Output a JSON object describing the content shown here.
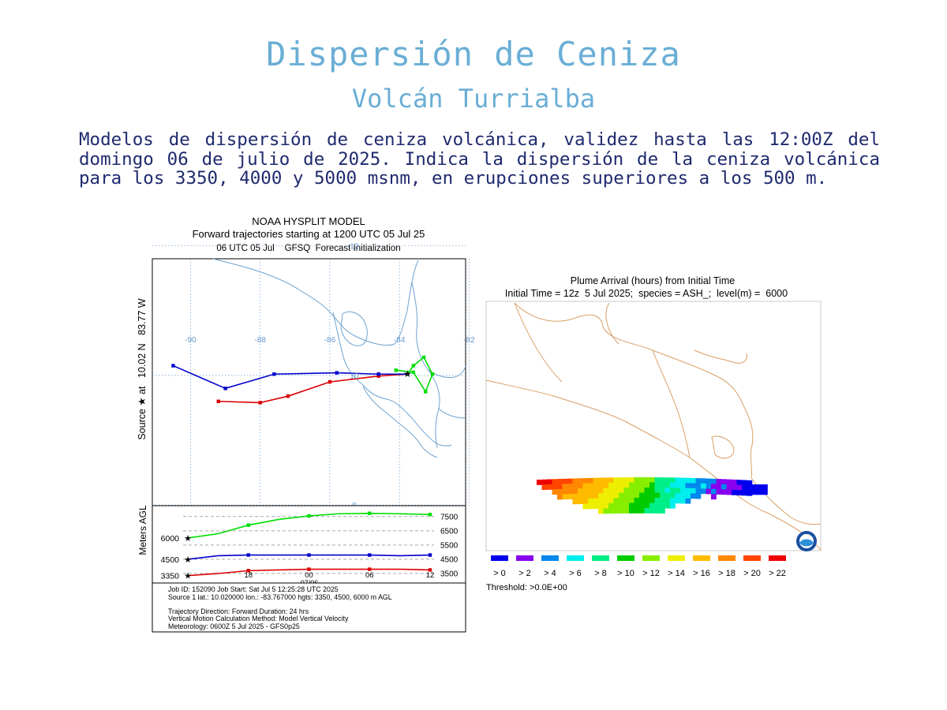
{
  "header": {
    "title": "Dispersión de Ceniza",
    "subtitle": "Volcán Turrialba",
    "description": "Modelos de dispersión de ceniza volcánica, validez hasta las 12:00Z del domingo 06 de julio de 2025. Indica la dispersión de la ceniza volcánica para los 3350, 4000 y 5000 msnm, en erupciones superiores a los 500 m."
  },
  "colors": {
    "title": "#6aaed6",
    "text": "#1f2a6e",
    "grid": "#6699cc",
    "coast_left": "#6fa3d0",
    "coast_right": "#d9a066"
  },
  "chart_data": [
    {
      "type": "line",
      "title": "NOAA HYSPLIT MODEL",
      "subtitle_lines": [
        "Forward trajectories starting at 1200 UTC 05 Jul 25",
        "06 UTC 05 Jul    GFSQ  Forecast Initialization"
      ],
      "ylabel": "Source ★ at   10.02 N   83.77 W",
      "lon_ticks": [
        "-90",
        "-88",
        "-86",
        "-84",
        "-82"
      ],
      "lat_ticks": [
        "12",
        "10",
        "8"
      ],
      "map_series": [
        {
          "name": "3350",
          "color": "#dd0000",
          "lon": [
            -83.77,
            -84.6,
            -86.0,
            -87.2,
            -88.0,
            -89.2
          ],
          "lat": [
            10.02,
            9.99,
            9.9,
            9.68,
            9.58,
            9.6
          ]
        },
        {
          "name": "4500",
          "color": "#0000cc",
          "lon": [
            -83.77,
            -84.6,
            -85.8,
            -87.6,
            -89.0,
            -90.5
          ],
          "lat": [
            10.02,
            10.02,
            10.04,
            10.02,
            9.8,
            10.15
          ]
        },
        {
          "name": "6000",
          "color": "#00dd00",
          "lon": [
            -83.77,
            -83.6,
            -83.3,
            -83.05,
            -83.25,
            -83.6,
            -84.1
          ],
          "lat": [
            10.02,
            10.15,
            10.28,
            10.02,
            9.75,
            10.05,
            10.08
          ]
        }
      ],
      "height": {
        "ylabel": "Meters AGL",
        "x_ticks": [
          "18",
          "00",
          "06",
          "12"
        ],
        "x_sublabel": "07/06",
        "left_labels": [
          "6000",
          "4500",
          "3350"
        ],
        "right_labels": [
          "7500",
          "6500",
          "5500",
          "4500",
          "3500"
        ],
        "hours": [
          0,
          3,
          6,
          9,
          12,
          15,
          18,
          21,
          24
        ],
        "series": [
          {
            "name": "6000",
            "color": "#00dd00",
            "values": [
              6000,
              6300,
              6900,
              7300,
              7550,
              7700,
              7730,
              7700,
              7650
            ]
          },
          {
            "name": "4500",
            "color": "#0000cc",
            "values": [
              4500,
              4750,
              4800,
              4800,
              4800,
              4800,
              4800,
              4750,
              4800
            ]
          },
          {
            "name": "3350",
            "color": "#dd0000",
            "values": [
              3350,
              3500,
              3700,
              3750,
              3800,
              3800,
              3800,
              3800,
              3750
            ]
          }
        ]
      },
      "info_lines": [
        "Job ID: 152090                 Job Start: Sat Jul  5 12:25:28 UTC 2025",
        "Source 1  lat.: 10.020000  lon.: -83.767000  hgts: 3350, 4500, 6000 m AGL",
        "Trajectory Direction: Forward       Duration: 24 hrs",
        "Vertical Motion Calculation Method:      Model Vertical Velocity",
        "Meteorology: 0600Z 5 Jul 2025 - GFS0p25"
      ]
    },
    {
      "type": "heatmap",
      "title_lines": [
        "Plume Arrival (hours) from Initial Time",
        "Initial Time = 12z  5 Jul 2025;  species = ASH_;  level(m) =  6000"
      ],
      "legend": [
        {
          "label": "> 0",
          "color": "#0000ee"
        },
        {
          "label": "> 2",
          "color": "#8800ee"
        },
        {
          "label": "> 4",
          "color": "#0088ee"
        },
        {
          "label": "> 6",
          "color": "#00eeee"
        },
        {
          "label": "> 8",
          "color": "#00ee88"
        },
        {
          "label": "> 10",
          "color": "#00cc00"
        },
        {
          "label": "> 12",
          "color": "#88ee00"
        },
        {
          "label": "> 14",
          "color": "#eeee00"
        },
        {
          "label": "> 16",
          "color": "#ffbb00"
        },
        {
          "label": "> 18",
          "color": "#ff8800"
        },
        {
          "label": "> 20",
          "color": "#ff4400"
        },
        {
          "label": "> 22",
          "color": "#ee0000"
        }
      ],
      "threshold": "Threshold: >0.0E+00",
      "logo": "NOAA"
    }
  ]
}
